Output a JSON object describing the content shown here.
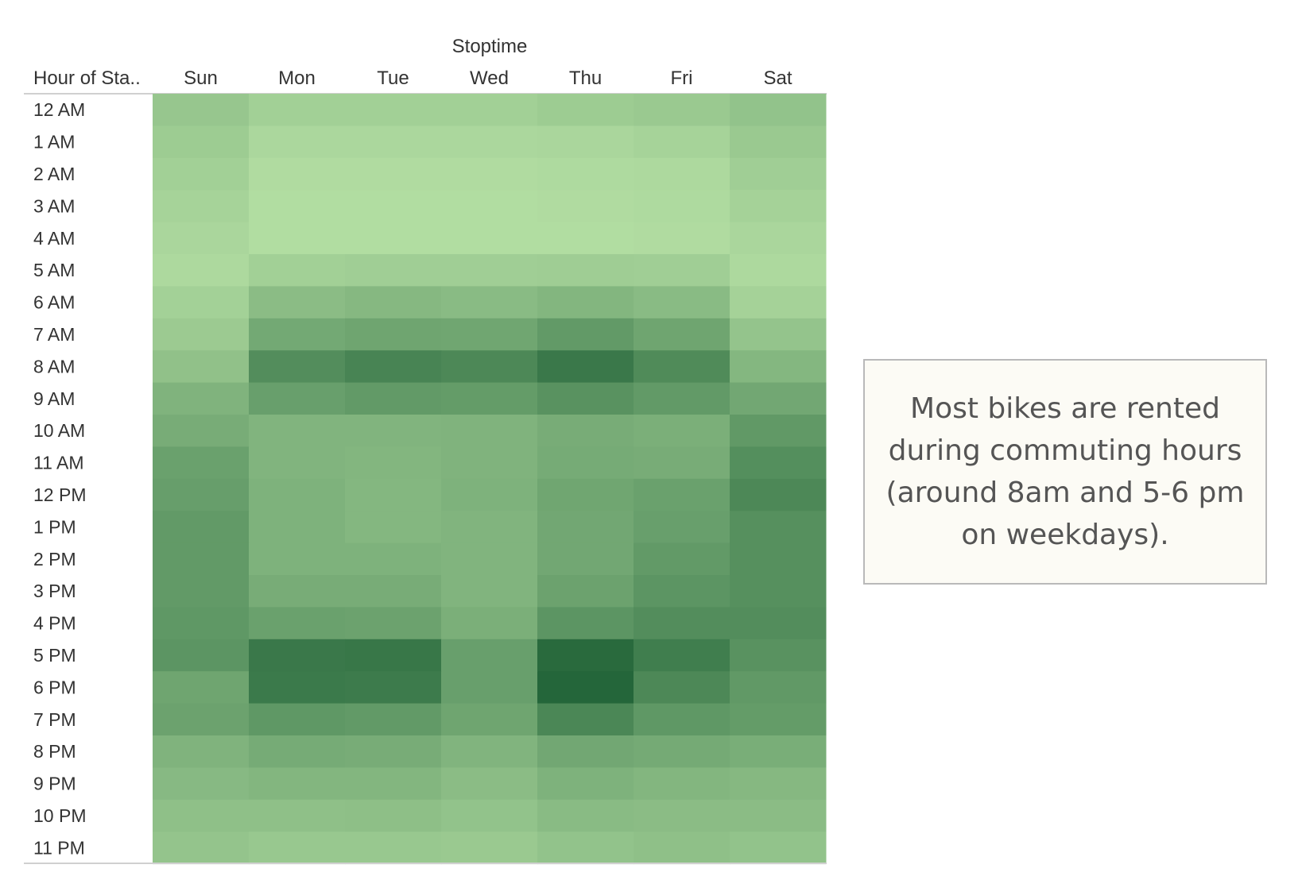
{
  "chart_data": {
    "type": "heatmap",
    "column_title": "Stoptime",
    "row_header": "Hour of Sta..",
    "columns": [
      "Sun",
      "Mon",
      "Tue",
      "Wed",
      "Thu",
      "Fri",
      "Sat"
    ],
    "rows": [
      "12 AM",
      "1 AM",
      "2 AM",
      "3 AM",
      "4 AM",
      "5 AM",
      "6 AM",
      "7 AM",
      "8 AM",
      "9 AM",
      "10 AM",
      "11 AM",
      "12 PM",
      "1 PM",
      "2 PM",
      "3 PM",
      "4 PM",
      "5 PM",
      "6 PM",
      "7 PM",
      "8 PM",
      "9 PM",
      "10 PM",
      "11 PM"
    ],
    "values": [
      [
        0.22,
        0.15,
        0.15,
        0.15,
        0.18,
        0.2,
        0.25
      ],
      [
        0.18,
        0.09,
        0.09,
        0.09,
        0.1,
        0.12,
        0.2
      ],
      [
        0.15,
        0.06,
        0.06,
        0.06,
        0.07,
        0.08,
        0.16
      ],
      [
        0.12,
        0.05,
        0.05,
        0.05,
        0.06,
        0.07,
        0.13
      ],
      [
        0.1,
        0.05,
        0.05,
        0.05,
        0.05,
        0.06,
        0.1
      ],
      [
        0.08,
        0.15,
        0.16,
        0.16,
        0.17,
        0.16,
        0.08
      ],
      [
        0.14,
        0.3,
        0.33,
        0.31,
        0.35,
        0.31,
        0.13
      ],
      [
        0.19,
        0.45,
        0.48,
        0.47,
        0.56,
        0.48,
        0.24
      ],
      [
        0.26,
        0.66,
        0.73,
        0.7,
        0.82,
        0.68,
        0.34
      ],
      [
        0.37,
        0.52,
        0.56,
        0.55,
        0.62,
        0.56,
        0.46
      ],
      [
        0.42,
        0.36,
        0.36,
        0.37,
        0.42,
        0.4,
        0.57
      ],
      [
        0.51,
        0.36,
        0.35,
        0.37,
        0.43,
        0.42,
        0.65
      ],
      [
        0.53,
        0.38,
        0.34,
        0.38,
        0.47,
        0.51,
        0.7
      ],
      [
        0.56,
        0.38,
        0.34,
        0.36,
        0.46,
        0.52,
        0.64
      ],
      [
        0.56,
        0.38,
        0.38,
        0.36,
        0.46,
        0.56,
        0.64
      ],
      [
        0.56,
        0.42,
        0.42,
        0.36,
        0.5,
        0.6,
        0.64
      ],
      [
        0.58,
        0.51,
        0.5,
        0.4,
        0.6,
        0.66,
        0.66
      ],
      [
        0.6,
        0.82,
        0.83,
        0.52,
        0.93,
        0.78,
        0.62
      ],
      [
        0.48,
        0.81,
        0.8,
        0.52,
        0.96,
        0.7,
        0.57
      ],
      [
        0.5,
        0.58,
        0.56,
        0.48,
        0.71,
        0.58,
        0.55
      ],
      [
        0.37,
        0.43,
        0.42,
        0.36,
        0.46,
        0.44,
        0.41
      ],
      [
        0.32,
        0.35,
        0.35,
        0.3,
        0.38,
        0.35,
        0.33
      ],
      [
        0.27,
        0.27,
        0.28,
        0.25,
        0.31,
        0.3,
        0.3
      ],
      [
        0.24,
        0.21,
        0.21,
        0.2,
        0.25,
        0.27,
        0.25
      ]
    ],
    "value_scale": "relative intensity (0 = lightest, 1 = darkest)",
    "color_low": "#b9e3a7",
    "color_high": "#1e6135",
    "annotation": "Most bikes are rented during commuting hours (around 8am and 5-6 pm on weekdays)."
  }
}
